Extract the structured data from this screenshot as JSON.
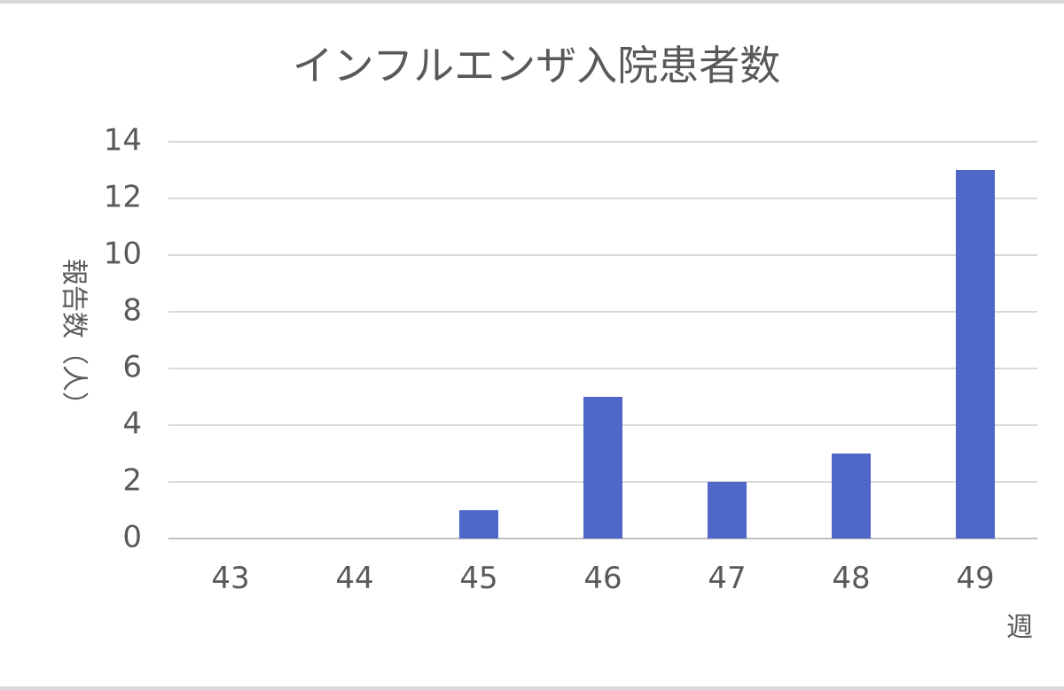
{
  "chart_data": {
    "type": "bar",
    "title": "インフルエンザ入院患者数",
    "xlabel": "週",
    "ylabel": "報告数（人）",
    "categories": [
      "43",
      "44",
      "45",
      "46",
      "47",
      "48",
      "49"
    ],
    "values": [
      0,
      0,
      1,
      5,
      2,
      3,
      13
    ],
    "ylim": [
      0,
      14
    ],
    "yticks": [
      "0",
      "2",
      "4",
      "6",
      "8",
      "10",
      "12",
      "14"
    ],
    "grid": true,
    "legend": "none",
    "bar_color": "#4f67c9"
  }
}
